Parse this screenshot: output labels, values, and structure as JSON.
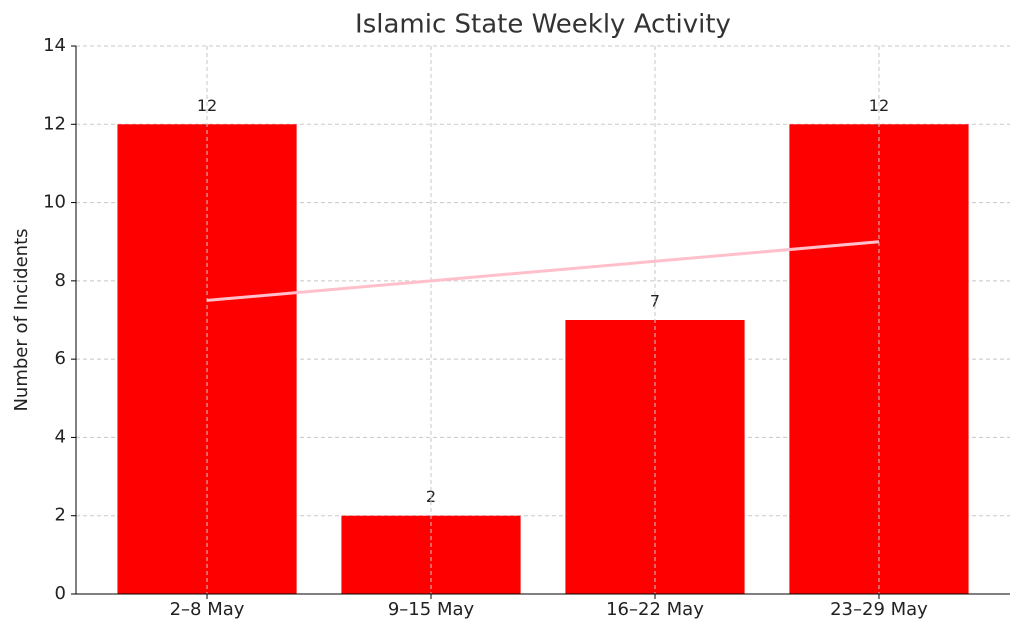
{
  "chart_data": {
    "type": "bar",
    "title": "Islamic State Weekly Activity",
    "y_label": "Number of Incidents",
    "categories": [
      "2–8 May",
      "9–15 May",
      "16–22 May",
      "23–29 May"
    ],
    "values": [
      12,
      2,
      7,
      12
    ],
    "color": "#ff0000",
    "trend": {
      "values": [
        7.5,
        8,
        8.5,
        9
      ],
      "color": "#ffc0cb"
    },
    "ylim": [
      0,
      14
    ],
    "yticks": [
      0,
      2,
      4,
      6,
      8,
      10,
      12,
      14
    ],
    "grid": true
  }
}
